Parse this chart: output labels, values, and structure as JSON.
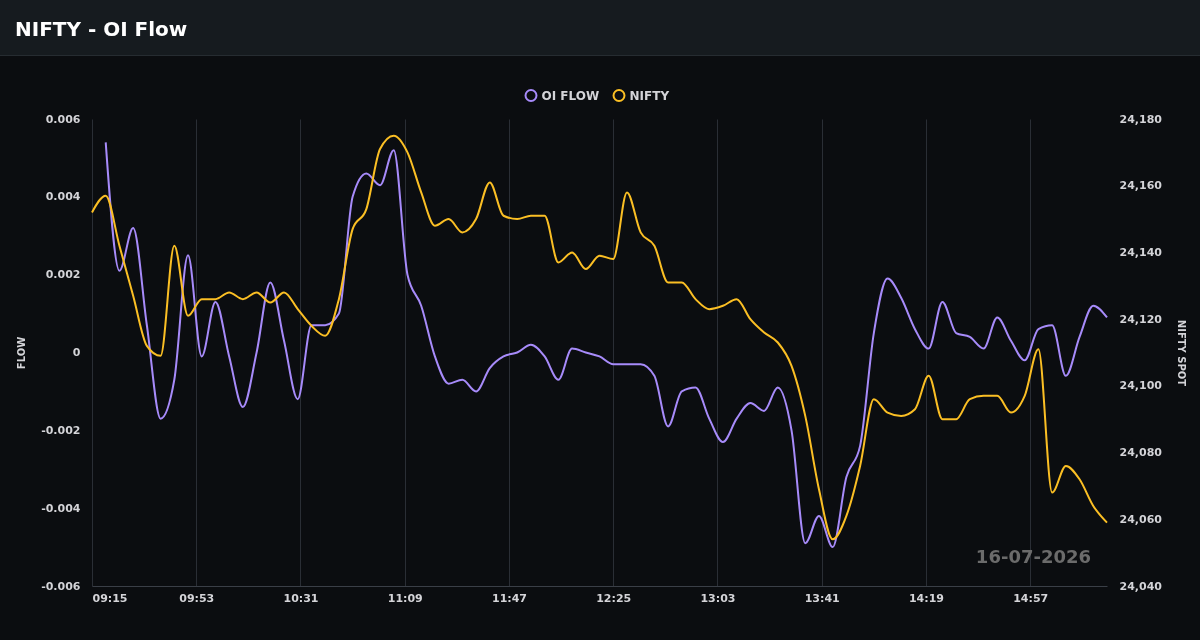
{
  "chart_data": {
    "type": "line",
    "title": "NIFTY - OI Flow",
    "ylabel": "FLOW",
    "y2label": "NIFTY SPOT",
    "annotations": [
      "16-07-2026"
    ],
    "x": [
      "2026-07-16T09:15",
      "2026-07-16T09:20",
      "2026-07-16T09:25",
      "2026-07-16T09:30",
      "2026-07-16T09:35",
      "2026-07-16T09:40",
      "2026-07-16T09:45",
      "2026-07-16T09:50",
      "2026-07-16T09:55",
      "2026-07-16T10:00",
      "2026-07-16T10:05",
      "2026-07-16T10:10",
      "2026-07-16T10:15",
      "2026-07-16T10:20",
      "2026-07-16T10:25",
      "2026-07-16T10:30",
      "2026-07-16T10:35",
      "2026-07-16T10:40",
      "2026-07-16T10:45",
      "2026-07-16T10:50",
      "2026-07-16T10:55",
      "2026-07-16T11:00",
      "2026-07-16T11:05",
      "2026-07-16T11:10",
      "2026-07-16T11:15",
      "2026-07-16T11:20",
      "2026-07-16T11:25",
      "2026-07-16T11:30",
      "2026-07-16T11:35",
      "2026-07-16T11:40",
      "2026-07-16T11:45",
      "2026-07-16T11:50",
      "2026-07-16T11:55",
      "2026-07-16T12:00",
      "2026-07-16T12:05",
      "2026-07-16T12:10",
      "2026-07-16T12:15",
      "2026-07-16T12:20",
      "2026-07-16T12:25",
      "2026-07-16T12:30",
      "2026-07-16T12:35",
      "2026-07-16T12:40",
      "2026-07-16T12:45",
      "2026-07-16T12:50",
      "2026-07-16T12:55",
      "2026-07-16T13:00",
      "2026-07-16T13:05",
      "2026-07-16T13:10",
      "2026-07-16T13:15",
      "2026-07-16T13:20",
      "2026-07-16T13:25",
      "2026-07-16T13:30",
      "2026-07-16T13:35",
      "2026-07-16T13:40",
      "2026-07-16T13:45",
      "2026-07-16T13:50",
      "2026-07-16T13:55",
      "2026-07-16T14:00",
      "2026-07-16T14:05",
      "2026-07-16T14:10",
      "2026-07-16T14:15",
      "2026-07-16T14:20",
      "2026-07-16T14:25",
      "2026-07-16T14:30",
      "2026-07-16T14:35",
      "2026-07-16T14:40",
      "2026-07-16T14:45",
      "2026-07-16T14:50",
      "2026-07-16T14:55",
      "2026-07-16T15:00",
      "2026-07-16T15:05",
      "2026-07-16T15:10",
      "2026-07-16T15:15",
      "2026-07-16T15:20",
      "2026-07-16T15:25"
    ],
    "series": [
      {
        "name": "OI FLOW",
        "color": "#a78bfa",
        "values": [
          null,
          0.0054,
          0.0021,
          0.0032,
          0.0007,
          -0.0017,
          -0.0007,
          0.0025,
          -0.0001,
          0.0013,
          -0.0001,
          -0.0014,
          0,
          0.0018,
          0.0003,
          -0.0012,
          0.0007,
          0.0007,
          0.001,
          0.004,
          0.0046,
          0.0043,
          0.0052,
          0.002,
          0.0012,
          -0.0001,
          -0.0008,
          -0.0007,
          -0.001,
          -0.0004,
          -0.0001,
          0,
          0.0002,
          -0.0001,
          -0.0007,
          0.0001,
          0,
          -0.0001,
          -0.0003,
          -0.0003,
          -0.0003,
          -0.0006,
          -0.0019,
          -0.001,
          -0.0009,
          -0.0017,
          -0.0023,
          -0.0017,
          -0.0013,
          -0.0015,
          -0.0009,
          -0.002,
          -0.0049,
          -0.0042,
          -0.005,
          -0.0032,
          -0.0024,
          0.0005,
          0.0019,
          0.0014,
          0.0006,
          0.0001,
          0.0013,
          0.0005,
          0.0004,
          0.0001,
          0.0009,
          0.0003,
          -0.0002,
          0.0006,
          0.0007,
          -0.0006,
          0.0004,
          0.0012,
          0.0009
        ]
      },
      {
        "name": "NIFTY",
        "color": "#fbbf24",
        "axis": "y2",
        "values": [
          24152,
          24157,
          24142,
          24127,
          24112,
          24109,
          24142,
          24121,
          24126,
          24126,
          24128,
          24126,
          24128,
          24125,
          24128,
          24123,
          24118,
          24115,
          24126,
          24147,
          24153,
          24171,
          24175,
          24170,
          24158,
          24148,
          24150,
          24146,
          24150,
          24161,
          24151,
          24150,
          24151,
          24151,
          24137,
          24140,
          24135,
          24139,
          24138,
          24158,
          24146,
          24142,
          24131,
          24131,
          24126,
          24123,
          24124,
          24126,
          24120,
          24116,
          24113,
          24106,
          24091,
          24069,
          24054,
          24061,
          24076,
          24096,
          24092,
          24091,
          24093,
          24103,
          24090,
          24090,
          24096,
          24097,
          24097,
          24092,
          24097,
          24111,
          24068,
          24076,
          24072,
          24064,
          24059
        ]
      }
    ],
    "xlim": [
      "2026-07-16T09:15",
      "2026-07-16T15:25"
    ],
    "xticks": [
      {
        "value": "2026-07-16T09:15",
        "label": "09:15"
      },
      {
        "value": "2026-07-16T09:53",
        "label": "09:53"
      },
      {
        "value": "2026-07-16T10:31",
        "label": "10:31"
      },
      {
        "value": "2026-07-16T11:09",
        "label": "11:09"
      },
      {
        "value": "2026-07-16T11:47",
        "label": "11:47"
      },
      {
        "value": "2026-07-16T12:25",
        "label": "12:25"
      },
      {
        "value": "2026-07-16T13:03",
        "label": "13:03"
      },
      {
        "value": "2026-07-16T13:41",
        "label": "13:41"
      },
      {
        "value": "2026-07-16T14:19",
        "label": "14:19"
      },
      {
        "value": "2026-07-16T14:57",
        "label": "14:57"
      }
    ],
    "ylim": [
      -0.006,
      0.006
    ],
    "yticks": [
      -0.006,
      -0.004,
      -0.002,
      0,
      0.002,
      0.004,
      0.006
    ],
    "y2lim": [
      24040,
      24180
    ],
    "y2ticks": [
      {
        "value": 24040,
        "label": "24,040"
      },
      {
        "value": 24060,
        "label": "24,060"
      },
      {
        "value": 24080,
        "label": "24,080"
      },
      {
        "value": 24100,
        "label": "24,100"
      },
      {
        "value": 24120,
        "label": "24,120"
      },
      {
        "value": 24140,
        "label": "24,140"
      },
      {
        "value": 24160,
        "label": "24,160"
      },
      {
        "value": 24180,
        "label": "24,180"
      }
    ],
    "grid": "x",
    "legend": "top",
    "marker": "none",
    "line_style": "solid"
  }
}
